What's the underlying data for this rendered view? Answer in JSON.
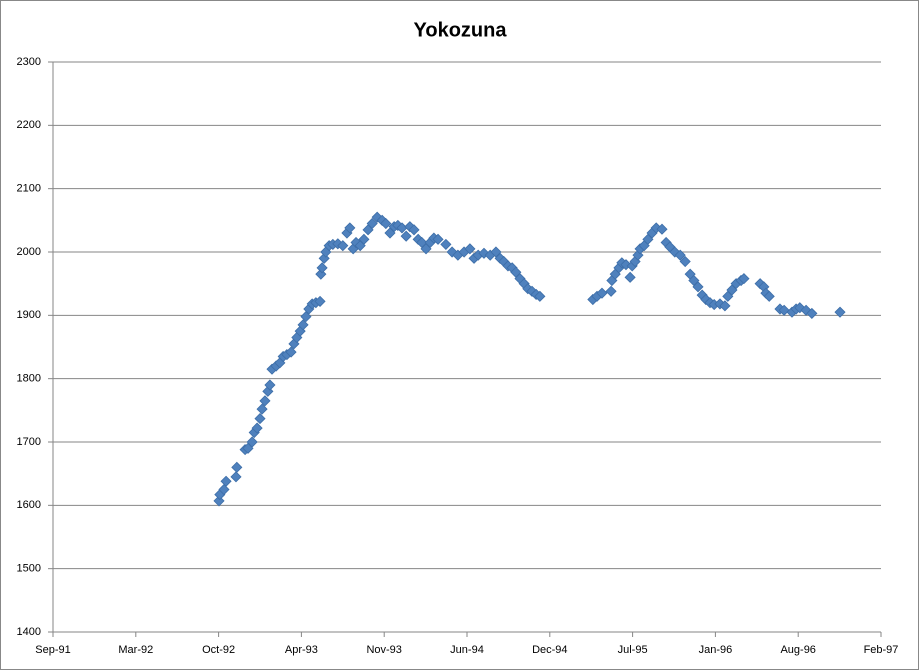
{
  "chart_data": {
    "type": "scatter",
    "title": "Yokozuna",
    "series": [
      {
        "name": "Yokozuna",
        "color": "#4f81bd",
        "x": [
          33883,
          33885,
          33895,
          33900,
          33924,
          33926,
          33946,
          33953,
          33963,
          33968,
          33975,
          33982,
          33987,
          33994,
          34001,
          34006,
          34011,
          34021,
          34030,
          34038,
          34047,
          34057,
          34064,
          34071,
          34079,
          34086,
          34093,
          34100,
          34108,
          34117,
          34127,
          34129,
          34132,
          34137,
          34141,
          34149,
          34158,
          34170,
          34182,
          34192,
          34199,
          34207,
          34214,
          34224,
          34233,
          34243,
          34253,
          34265,
          34277,
          34286,
          34296,
          34306,
          34315,
          34325,
          34335,
          34344,
          34354,
          34364,
          34373,
          34383,
          34393,
          34402,
          34412,
          34431,
          34446,
          34460,
          34475,
          34489,
          34499,
          34509,
          34523,
          34538,
          34552,
          34562,
          34571,
          34581,
          34591,
          34600,
          34610,
          34620,
          34629,
          34639,
          34649,
          34658,
          34786,
          34796,
          34808,
          34830,
          34832,
          34840,
          34849,
          34856,
          34866,
          34876,
          34881,
          34888,
          34895,
          34900,
          34910,
          34919,
          34929,
          34939,
          34953,
          34963,
          34972,
          34984,
          34997,
          35009,
          35021,
          35030,
          35040,
          35050,
          35059,
          35069,
          35079,
          35093,
          35105,
          35112,
          35122,
          35132,
          35144,
          35151,
          35190,
          35199,
          35204,
          35212,
          35238,
          35248,
          35267,
          35277,
          35286,
          35301,
          35315,
          35383
        ],
        "values": [
          1607,
          1617,
          1625,
          1638,
          1645,
          1660,
          1688,
          1690,
          1700,
          1715,
          1722,
          1737,
          1752,
          1765,
          1780,
          1790,
          1815,
          1820,
          1825,
          1835,
          1838,
          1842,
          1855,
          1865,
          1875,
          1885,
          1898,
          1910,
          1918,
          1920,
          1922,
          1965,
          1975,
          1990,
          2000,
          2010,
          2012,
          2013,
          2010,
          2030,
          2038,
          2005,
          2015,
          2010,
          2020,
          2035,
          2045,
          2055,
          2050,
          2045,
          2030,
          2040,
          2042,
          2038,
          2025,
          2040,
          2035,
          2020,
          2015,
          2005,
          2015,
          2022,
          2020,
          2012,
          2000,
          1995,
          2000,
          2005,
          1990,
          1995,
          1998,
          1995,
          2000,
          1990,
          1985,
          1978,
          1975,
          1968,
          1958,
          1950,
          1942,
          1938,
          1933,
          1930,
          1925,
          1930,
          1935,
          1938,
          1955,
          1965,
          1975,
          1983,
          1980,
          1960,
          1978,
          1985,
          1995,
          2005,
          2010,
          2020,
          2030,
          2038,
          2036,
          2015,
          2008,
          2000,
          1995,
          1985,
          1965,
          1955,
          1945,
          1932,
          1925,
          1920,
          1917,
          1918,
          1915,
          1930,
          1940,
          1950,
          1955,
          1958,
          1950,
          1945,
          1935,
          1930,
          1910,
          1908,
          1905,
          1910,
          1912,
          1908,
          1903,
          1905
        ]
      }
    ],
    "xlim": [
      33482,
      35482
    ],
    "xticks": [
      {
        "value": 33482,
        "label": "Sep-91"
      },
      {
        "value": 33682,
        "label": "Mar-92"
      },
      {
        "value": 33882,
        "label": "Oct-92"
      },
      {
        "value": 34082,
        "label": "Apr-93"
      },
      {
        "value": 34282,
        "label": "Nov-93"
      },
      {
        "value": 34482,
        "label": "Jun-94"
      },
      {
        "value": 34682,
        "label": "Dec-94"
      },
      {
        "value": 34882,
        "label": "Jul-95"
      },
      {
        "value": 35082,
        "label": "Jan-96"
      },
      {
        "value": 35282,
        "label": "Aug-96"
      },
      {
        "value": 35482,
        "label": "Feb-97"
      }
    ],
    "ylim": [
      1400,
      2300
    ],
    "yticks": [
      1400,
      1500,
      1600,
      1700,
      1800,
      1900,
      2000,
      2100,
      2200,
      2300
    ],
    "grid": true
  }
}
